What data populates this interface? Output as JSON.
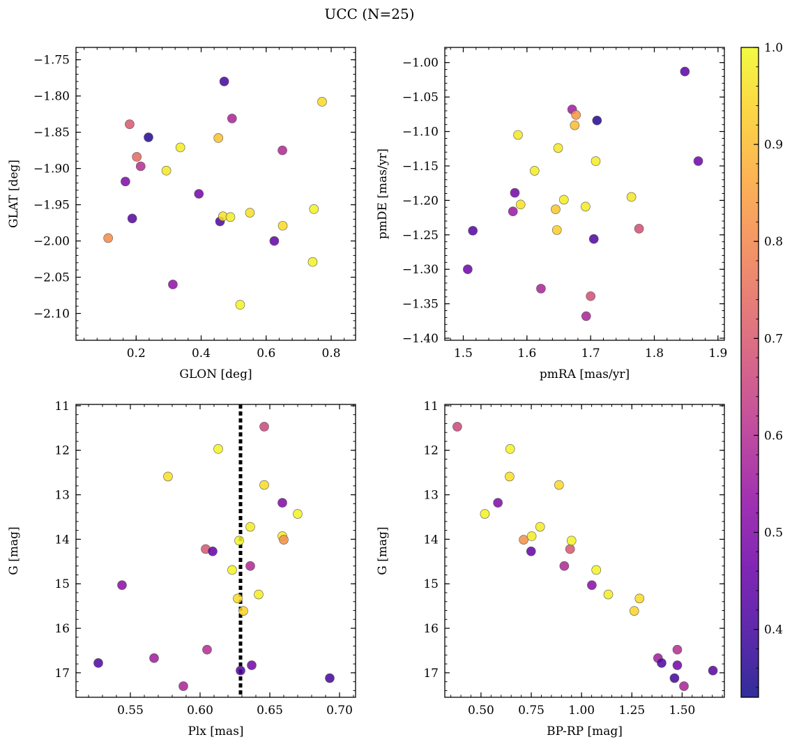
{
  "figure": {
    "title": "UCC (N=25)"
  },
  "chart_data": [
    {
      "type": "scatter",
      "xlabel": "GLON [deg]",
      "ylabel": "GLAT [deg]",
      "xlim": [
        0.015,
        0.875
      ],
      "ylim": [
        -2.137,
        -1.733
      ],
      "yinvert": false,
      "xticks": [
        0.2,
        0.4,
        0.6,
        0.8
      ],
      "xticklabels": [
        "0.2",
        "0.4",
        "0.6",
        "0.8"
      ],
      "xminor": 0.04,
      "yticks": [
        -1.75,
        -1.8,
        -1.85,
        -1.9,
        -1.95,
        -2.0,
        -2.05,
        -2.1
      ],
      "yticklabels": [
        "−1.75",
        "−1.80",
        "−1.85",
        "−1.90",
        "−1.95",
        "−2.00",
        "−2.05",
        "−2.10"
      ],
      "yminor": 0.01,
      "points": [
        {
          "x": 0.114,
          "y": -1.996,
          "c": 0.81
        },
        {
          "x": 0.167,
          "y": -1.918,
          "c": 0.5
        },
        {
          "x": 0.18,
          "y": -1.839,
          "c": 0.7
        },
        {
          "x": 0.188,
          "y": -1.969,
          "c": 0.43
        },
        {
          "x": 0.202,
          "y": -1.884,
          "c": 0.74
        },
        {
          "x": 0.214,
          "y": -1.897,
          "c": 0.6
        },
        {
          "x": 0.238,
          "y": -1.857,
          "c": 0.36
        },
        {
          "x": 0.293,
          "y": -1.903,
          "c": 0.97
        },
        {
          "x": 0.313,
          "y": -2.06,
          "c": 0.53
        },
        {
          "x": 0.336,
          "y": -1.871,
          "c": 0.98
        },
        {
          "x": 0.393,
          "y": -1.935,
          "c": 0.48
        },
        {
          "x": 0.453,
          "y": -1.858,
          "c": 0.91
        },
        {
          "x": 0.458,
          "y": -1.973,
          "c": 0.42
        },
        {
          "x": 0.467,
          "y": -1.966,
          "c": 0.96
        },
        {
          "x": 0.471,
          "y": -1.78,
          "c": 0.4
        },
        {
          "x": 0.49,
          "y": -1.967,
          "c": 0.98
        },
        {
          "x": 0.495,
          "y": -1.831,
          "c": 0.58
        },
        {
          "x": 0.52,
          "y": -2.088,
          "c": 0.99
        },
        {
          "x": 0.55,
          "y": -1.961,
          "c": 0.96
        },
        {
          "x": 0.625,
          "y": -2.0,
          "c": 0.45
        },
        {
          "x": 0.65,
          "y": -1.875,
          "c": 0.59
        },
        {
          "x": 0.651,
          "y": -1.979,
          "c": 0.95
        },
        {
          "x": 0.743,
          "y": -2.029,
          "c": 0.99
        },
        {
          "x": 0.747,
          "y": -1.956,
          "c": 0.99
        },
        {
          "x": 0.772,
          "y": -1.808,
          "c": 0.95
        }
      ]
    },
    {
      "type": "scatter",
      "xlabel": "pmRA [mas/yr]",
      "ylabel": "pmDE [mas/yr]",
      "xlim": [
        1.471,
        1.91
      ],
      "ylim": [
        -1.403,
        -0.978
      ],
      "yinvert": false,
      "xticks": [
        1.5,
        1.6,
        1.7,
        1.8,
        1.9
      ],
      "xticklabels": [
        "1.5",
        "1.6",
        "1.7",
        "1.8",
        "1.9"
      ],
      "xminor": 0.02,
      "yticks": [
        -1.0,
        -1.05,
        -1.1,
        -1.15,
        -1.2,
        -1.25,
        -1.3,
        -1.35,
        -1.4
      ],
      "yticklabels": [
        "−1.00",
        "−1.05",
        "−1.10",
        "−1.15",
        "−1.20",
        "−1.25",
        "−1.30",
        "−1.35",
        "−1.40"
      ],
      "yminor": 0.01,
      "points": [
        {
          "x": 1.507,
          "y": -1.3,
          "c": 0.47
        },
        {
          "x": 1.515,
          "y": -1.244,
          "c": 0.43
        },
        {
          "x": 1.578,
          "y": -1.216,
          "c": 0.55
        },
        {
          "x": 1.581,
          "y": -1.189,
          "c": 0.48
        },
        {
          "x": 1.586,
          "y": -1.105,
          "c": 0.97
        },
        {
          "x": 1.59,
          "y": -1.206,
          "c": 0.96
        },
        {
          "x": 1.612,
          "y": -1.157,
          "c": 0.98
        },
        {
          "x": 1.622,
          "y": -1.328,
          "c": 0.58
        },
        {
          "x": 1.645,
          "y": -1.213,
          "c": 0.92
        },
        {
          "x": 1.647,
          "y": -1.243,
          "c": 0.93
        },
        {
          "x": 1.649,
          "y": -1.124,
          "c": 0.97
        },
        {
          "x": 1.658,
          "y": -1.199,
          "c": 0.98
        },
        {
          "x": 1.671,
          "y": -1.068,
          "c": 0.56
        },
        {
          "x": 1.675,
          "y": -1.091,
          "c": 0.9
        },
        {
          "x": 1.677,
          "y": -1.076,
          "c": 0.83
        },
        {
          "x": 1.692,
          "y": -1.209,
          "c": 0.98
        },
        {
          "x": 1.693,
          "y": -1.368,
          "c": 0.58
        },
        {
          "x": 1.7,
          "y": -1.339,
          "c": 0.68
        },
        {
          "x": 1.705,
          "y": -1.256,
          "c": 0.42
        },
        {
          "x": 1.708,
          "y": -1.143,
          "c": 0.98
        },
        {
          "x": 1.71,
          "y": -1.084,
          "c": 0.36
        },
        {
          "x": 1.764,
          "y": -1.195,
          "c": 0.97
        },
        {
          "x": 1.776,
          "y": -1.241,
          "c": 0.68
        },
        {
          "x": 1.848,
          "y": -1.013,
          "c": 0.44
        },
        {
          "x": 1.869,
          "y": -1.143,
          "c": 0.47
        }
      ]
    },
    {
      "type": "scatter",
      "xlabel": "Plx [mas]",
      "ylabel": "G [mag]",
      "xlim": [
        0.511,
        0.7115
      ],
      "ylim": [
        17.55,
        10.97
      ],
      "yinvert": true,
      "vline": 0.629,
      "xticks": [
        0.55,
        0.6,
        0.65,
        0.7
      ],
      "xticklabels": [
        "0.55",
        "0.60",
        "0.65",
        "0.70"
      ],
      "xminor": 0.01,
      "yticks": [
        11,
        12,
        13,
        14,
        15,
        16,
        17
      ],
      "yticklabels": [
        "11",
        "12",
        "13",
        "14",
        "15",
        "16",
        "17"
      ],
      "yminor": 0.2,
      "points": [
        {
          "x": 0.527,
          "y": 16.78,
          "c": 0.42
        },
        {
          "x": 0.544,
          "y": 15.03,
          "c": 0.52
        },
        {
          "x": 0.567,
          "y": 16.67,
          "c": 0.56
        },
        {
          "x": 0.577,
          "y": 12.59,
          "c": 0.96
        },
        {
          "x": 0.588,
          "y": 17.3,
          "c": 0.58
        },
        {
          "x": 0.604,
          "y": 14.22,
          "c": 0.7
        },
        {
          "x": 0.605,
          "y": 16.48,
          "c": 0.6
        },
        {
          "x": 0.609,
          "y": 14.27,
          "c": 0.45
        },
        {
          "x": 0.613,
          "y": 11.97,
          "c": 0.99
        },
        {
          "x": 0.623,
          "y": 14.69,
          "c": 0.99
        },
        {
          "x": 0.627,
          "y": 15.33,
          "c": 0.95
        },
        {
          "x": 0.628,
          "y": 14.03,
          "c": 0.99
        },
        {
          "x": 0.629,
          "y": 16.95,
          "c": 0.43
        },
        {
          "x": 0.631,
          "y": 15.61,
          "c": 0.94
        },
        {
          "x": 0.636,
          "y": 13.72,
          "c": 0.98
        },
        {
          "x": 0.636,
          "y": 14.6,
          "c": 0.59
        },
        {
          "x": 0.637,
          "y": 16.83,
          "c": 0.48
        },
        {
          "x": 0.642,
          "y": 15.24,
          "c": 0.98
        },
        {
          "x": 0.646,
          "y": 11.47,
          "c": 0.66
        },
        {
          "x": 0.646,
          "y": 12.78,
          "c": 0.95
        },
        {
          "x": 0.659,
          "y": 13.18,
          "c": 0.5
        },
        {
          "x": 0.659,
          "y": 13.93,
          "c": 0.98
        },
        {
          "x": 0.66,
          "y": 14.01,
          "c": 0.82
        },
        {
          "x": 0.67,
          "y": 13.43,
          "c": 0.99
        },
        {
          "x": 0.693,
          "y": 17.12,
          "c": 0.4
        }
      ]
    },
    {
      "type": "scatter",
      "xlabel": "BP-RP [mag]",
      "ylabel": "G [mag]",
      "xlim": [
        0.32,
        1.71
      ],
      "ylim": [
        17.55,
        10.97
      ],
      "yinvert": true,
      "xticks": [
        0.5,
        0.75,
        1.0,
        1.25,
        1.5
      ],
      "xticklabels": [
        "0.50",
        "0.75",
        "1.00",
        "1.25",
        "1.50"
      ],
      "xminor": 0.05,
      "yticks": [
        11,
        12,
        13,
        14,
        15,
        16,
        17
      ],
      "yticklabels": [
        "11",
        "12",
        "13",
        "14",
        "15",
        "16",
        "17"
      ],
      "yminor": 0.2,
      "points": [
        {
          "x": 0.382,
          "y": 11.47,
          "c": 0.66
        },
        {
          "x": 0.519,
          "y": 13.43,
          "c": 0.99
        },
        {
          "x": 0.584,
          "y": 13.18,
          "c": 0.5
        },
        {
          "x": 0.645,
          "y": 11.97,
          "c": 0.99
        },
        {
          "x": 0.642,
          "y": 12.59,
          "c": 0.96
        },
        {
          "x": 0.712,
          "y": 14.01,
          "c": 0.82
        },
        {
          "x": 0.752,
          "y": 13.93,
          "c": 0.98
        },
        {
          "x": 0.749,
          "y": 14.27,
          "c": 0.45
        },
        {
          "x": 0.794,
          "y": 13.72,
          "c": 0.98
        },
        {
          "x": 0.888,
          "y": 12.78,
          "c": 0.95
        },
        {
          "x": 0.914,
          "y": 14.6,
          "c": 0.59
        },
        {
          "x": 0.943,
          "y": 14.22,
          "c": 0.7
        },
        {
          "x": 0.95,
          "y": 14.03,
          "c": 0.99
        },
        {
          "x": 1.051,
          "y": 15.03,
          "c": 0.52
        },
        {
          "x": 1.073,
          "y": 14.69,
          "c": 0.99
        },
        {
          "x": 1.133,
          "y": 15.24,
          "c": 0.98
        },
        {
          "x": 1.262,
          "y": 15.61,
          "c": 0.94
        },
        {
          "x": 1.288,
          "y": 15.33,
          "c": 0.95
        },
        {
          "x": 1.38,
          "y": 16.67,
          "c": 0.56
        },
        {
          "x": 1.398,
          "y": 16.78,
          "c": 0.42
        },
        {
          "x": 1.462,
          "y": 17.12,
          "c": 0.4
        },
        {
          "x": 1.476,
          "y": 16.48,
          "c": 0.6
        },
        {
          "x": 1.476,
          "y": 16.83,
          "c": 0.48
        },
        {
          "x": 1.509,
          "y": 17.3,
          "c": 0.58
        },
        {
          "x": 1.653,
          "y": 16.95,
          "c": 0.43
        }
      ]
    }
  ],
  "colorbar": {
    "colormap": "plasma",
    "range": [
      0.33,
      1.0
    ],
    "ticks": [
      0.4,
      0.5,
      0.6,
      0.7,
      0.8,
      0.9,
      1.0
    ],
    "ticklabels": [
      "0.4",
      "0.5",
      "0.6",
      "0.7",
      "0.8",
      "0.9",
      "1.0"
    ]
  }
}
